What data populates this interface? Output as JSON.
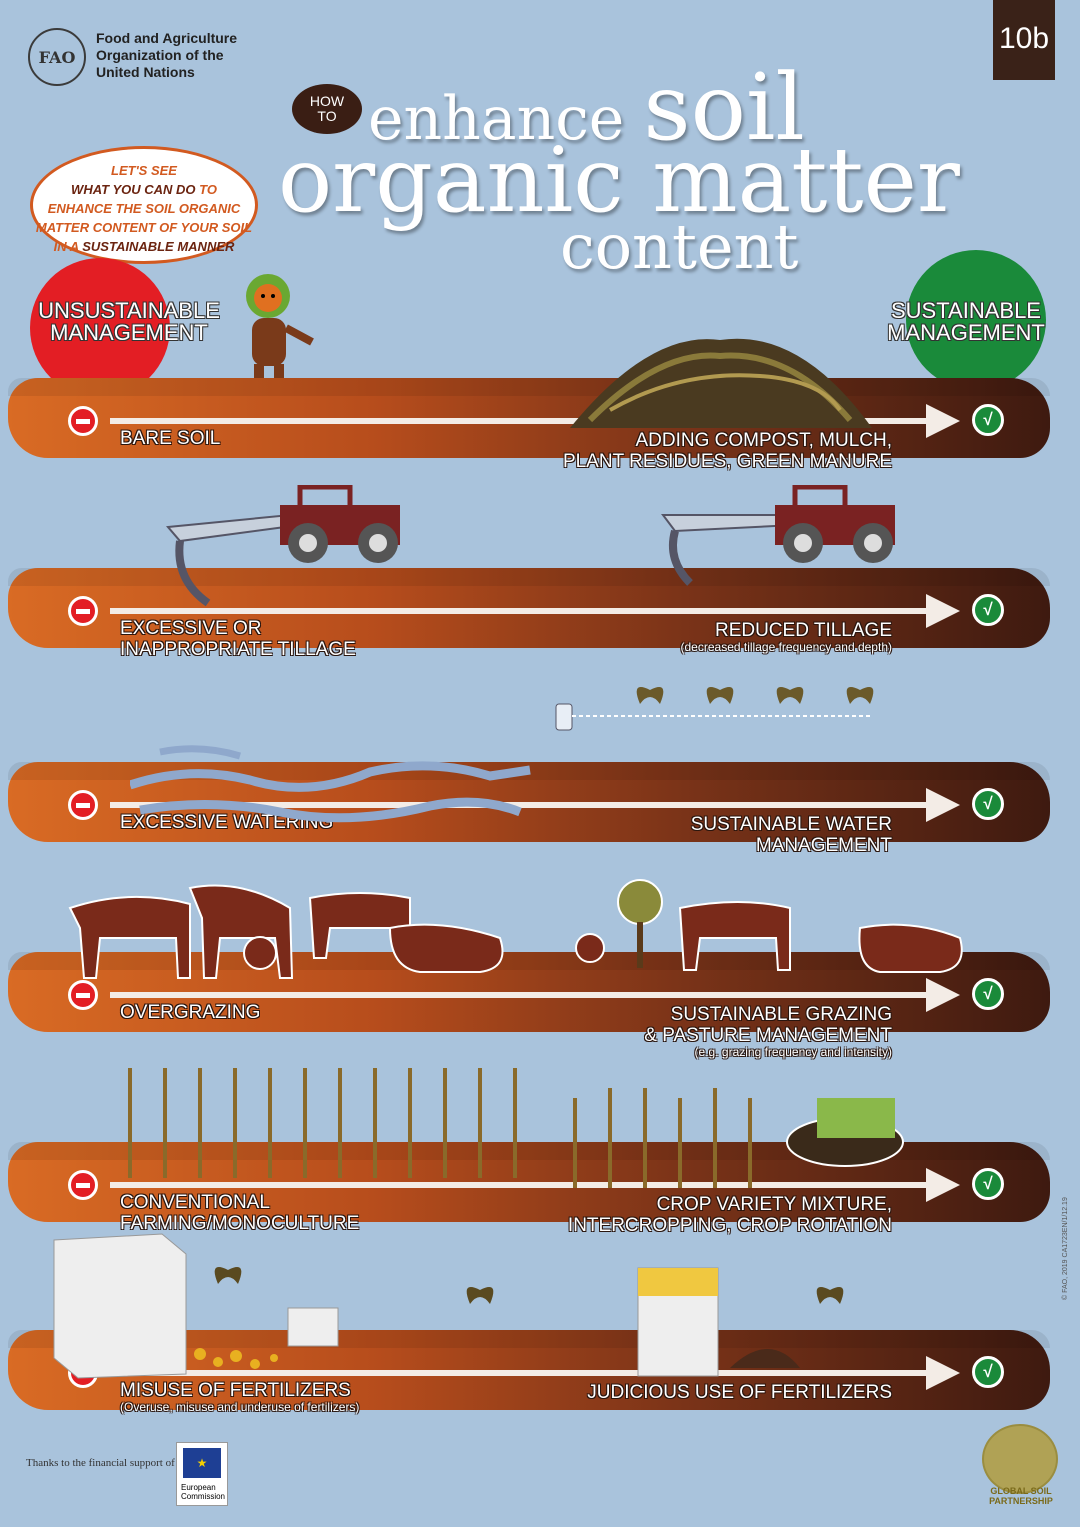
{
  "header": {
    "org_logo_letters": "FAO",
    "org_name_line1": "Food and Agriculture",
    "org_name_line2": "Organization of the",
    "org_name_line3": "United Nations",
    "badge": "10b"
  },
  "title": {
    "how_line1": "HOW",
    "how_line2": "TO",
    "line1_a": "enhance ",
    "line1_b": "soil",
    "line2": "organic matter",
    "line3": "content"
  },
  "bubble": {
    "part1": "LET'S SEE",
    "part2": "WHAT YOU CAN DO",
    "part3": " TO",
    "part4": "ENHANCE THE SOIL ORGANIC",
    "part5": "MATTER CONTENT OF YOUR SOIL",
    "part6": "IN A ",
    "part7": "SUSTAINABLE MANNER"
  },
  "management": {
    "unsustainable_line1": "UNSUSTAINABLE",
    "unsustainable_line2": "MANAGEMENT",
    "sustainable_line1": "SUSTAINABLE",
    "sustainable_line2": "MANAGEMENT"
  },
  "rows": [
    {
      "bad_line1": "BARE SOIL",
      "bad_line2": "",
      "bad_sub": "",
      "good_line1": "ADDING COMPOST, MULCH,",
      "good_line2": "PLANT RESIDUES, GREEN MANURE",
      "good_sub": ""
    },
    {
      "bad_line1": "EXCESSIVE OR",
      "bad_line2": "INAPPROPRIATE TILLAGE",
      "bad_sub": "",
      "good_line1": "REDUCED TILLAGE",
      "good_line2": "",
      "good_sub": "(decreased tillage frequency and depth)"
    },
    {
      "bad_line1": "EXCESSIVE WATERING",
      "bad_line2": "",
      "bad_sub": "",
      "good_line1": "SUSTAINABLE WATER",
      "good_line2": "MANAGEMENT",
      "good_sub": ""
    },
    {
      "bad_line1": "OVERGRAZING",
      "bad_line2": "",
      "bad_sub": "",
      "good_line1": "SUSTAINABLE GRAZING",
      "good_line2": "& PASTURE MANAGEMENT",
      "good_sub": "(e.g. grazing frequency and intensity)"
    },
    {
      "bad_line1": "CONVENTIONAL",
      "bad_line2": "FARMING/MONOCULTURE",
      "bad_sub": "",
      "good_line1": "CROP VARIETY MIXTURE,",
      "good_line2": "INTERCROPPING, CROP ROTATION",
      "good_sub": ""
    },
    {
      "bad_line1": "MISUSE OF FERTILIZERS",
      "bad_line2": "",
      "bad_sub": "(Overuse, misuse and underuse of fertilizers)",
      "good_line1": "JUDICIOUS USE OF FERTILIZERS",
      "good_line2": "",
      "good_sub": ""
    }
  ],
  "check_glyph": "√",
  "footer": {
    "support_text": "Thanks to the financial support of",
    "eu_line1": "European",
    "eu_line2": "Commission",
    "eu_stars": "★",
    "gsp_line1": "GLOBAL SOIL",
    "gsp_line2": "PARTNERSHIP",
    "side_note": "© FAO, 2019 CA1723EN/1/12.19"
  },
  "colors": {
    "background": "#a9c3dc",
    "unsustainable": "#e31e24",
    "sustainable": "#1a8a3a",
    "soil_light": "#d96b24",
    "soil_dark": "#3e1a10"
  }
}
